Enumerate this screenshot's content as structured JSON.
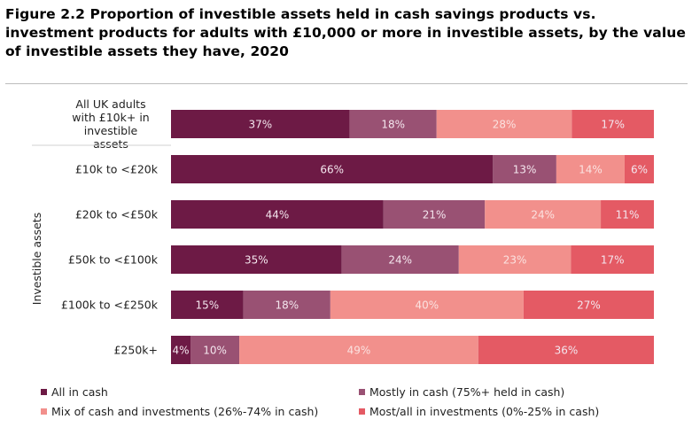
{
  "title": "Figure 2.2  Proportion of investible assets held in cash savings products vs. investment products for adults with £10,000 or more in investible assets, by the value of investible assets they have, 2020",
  "chart_data": {
    "type": "bar",
    "orientation": "horizontal",
    "stacked": true,
    "normalized": true,
    "ylabel": "Investible assets",
    "categories": [
      "All UK adults with £10k+ in investible assets",
      "£10k to <£20k",
      "£20k to <£50k",
      "£50k to <£100k",
      "£100k to <£250k",
      "£250k+"
    ],
    "series": [
      {
        "name": "All in cash",
        "color": "#6d1a45",
        "values": [
          37,
          66,
          44,
          35,
          15,
          4
        ],
        "labels": [
          "37%",
          "66%",
          "44%",
          "35%",
          "15%",
          "4%"
        ]
      },
      {
        "name": "Mostly in cash (75%+ held in cash)",
        "color": "#995173",
        "values": [
          18,
          13,
          21,
          24,
          18,
          10
        ],
        "labels": [
          "18%",
          "13%",
          "21%",
          "24%",
          "18%",
          "10%"
        ]
      },
      {
        "name": "Mix of cash and investments (26%-74% in cash)",
        "color": "#f2908c",
        "values": [
          28,
          14,
          24,
          23,
          40,
          49
        ],
        "labels": [
          "28%",
          "14%",
          "24%",
          "23%",
          "40%",
          "49%"
        ]
      },
      {
        "name": "Most/all in investments (0%-25% in cash)",
        "color": "#e45a64",
        "values": [
          17,
          6,
          11,
          17,
          27,
          36
        ],
        "labels": [
          "17%",
          "6%",
          "11%",
          "17%",
          "27%",
          "36%"
        ]
      }
    ],
    "xlim": [
      0,
      100
    ],
    "legend_position": "bottom",
    "grid": false
  }
}
